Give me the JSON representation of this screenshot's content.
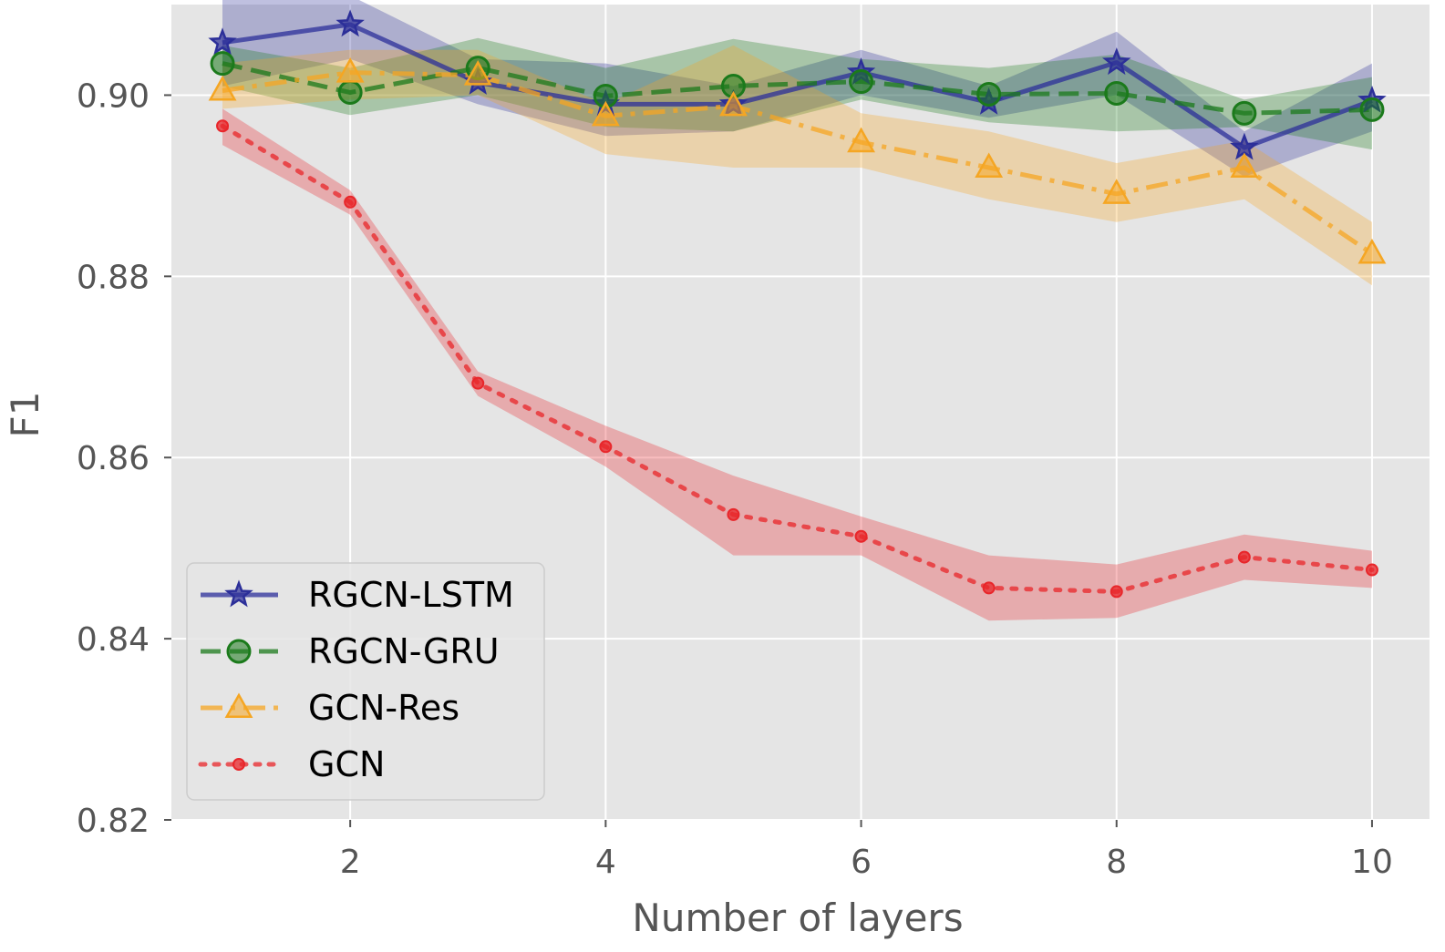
{
  "chart_data": {
    "type": "line",
    "title": "",
    "xlabel": "Number of layers",
    "ylabel": "F1",
    "xlim": [
      0.6,
      10.45
    ],
    "ylim": [
      0.82,
      0.91
    ],
    "xticks": [
      2,
      4,
      6,
      8,
      10
    ],
    "yticks": [
      0.82,
      0.84,
      0.86,
      0.88,
      0.9
    ],
    "ytick_labels": [
      "0.82",
      "0.84",
      "0.86",
      "0.88",
      "0.90"
    ],
    "grid": true,
    "legend_position": "lower-left",
    "x": [
      1,
      2,
      3,
      4,
      5,
      6,
      7,
      8,
      9,
      10
    ],
    "series": [
      {
        "name": "RGCN-LSTM",
        "color": "#2c2f99",
        "marker": "star",
        "linestyle": "solid",
        "values": [
          0.9058,
          0.9078,
          0.9014,
          0.899,
          0.899,
          0.9025,
          0.8992,
          0.9036,
          0.8942,
          0.8994
        ],
        "upper": [
          0.911,
          0.911,
          0.904,
          0.9035,
          0.901,
          0.905,
          0.901,
          0.907,
          0.896,
          0.9035
        ],
        "lower": [
          0.901,
          0.904,
          0.899,
          0.8955,
          0.896,
          0.9,
          0.8975,
          0.9,
          0.891,
          0.896
        ]
      },
      {
        "name": "RGCN-GRU",
        "color": "#1b7a1b",
        "marker": "circle",
        "linestyle": "dashed",
        "values": [
          0.9035,
          0.9003,
          0.903,
          0.8999,
          0.901,
          0.9015,
          0.9001,
          0.9002,
          0.898,
          0.8984
        ],
        "upper": [
          0.9055,
          0.903,
          0.9063,
          0.903,
          0.9062,
          0.904,
          0.903,
          0.9045,
          0.8995,
          0.902
        ],
        "lower": [
          0.901,
          0.8978,
          0.9,
          0.8965,
          0.896,
          0.8995,
          0.897,
          0.896,
          0.8965,
          0.894
        ]
      },
      {
        "name": "GCN-Res",
        "color": "#f5a623",
        "marker": "triangle",
        "linestyle": "dashdot",
        "values": [
          0.9005,
          0.9025,
          0.9022,
          0.8977,
          0.8988,
          0.8948,
          0.892,
          0.8891,
          0.892,
          0.8825
        ],
        "upper": [
          0.9035,
          0.905,
          0.905,
          0.899,
          0.9055,
          0.898,
          0.896,
          0.8925,
          0.895,
          0.886
        ],
        "lower": [
          0.8985,
          0.8995,
          0.9,
          0.8935,
          0.892,
          0.892,
          0.8885,
          0.886,
          0.8885,
          0.879
        ]
      },
      {
        "name": "GCN",
        "color": "#e8262a",
        "marker": "small-circle",
        "linestyle": "dotted",
        "values": [
          0.8966,
          0.8882,
          0.8682,
          0.8612,
          0.8537,
          0.8513,
          0.8456,
          0.8452,
          0.849,
          0.8476
        ],
        "upper": [
          0.8985,
          0.8895,
          0.8695,
          0.8635,
          0.858,
          0.8535,
          0.8492,
          0.8482,
          0.8515,
          0.8497
        ],
        "lower": [
          0.8945,
          0.8868,
          0.8668,
          0.859,
          0.8492,
          0.8492,
          0.842,
          0.8423,
          0.8465,
          0.8456
        ]
      }
    ]
  }
}
